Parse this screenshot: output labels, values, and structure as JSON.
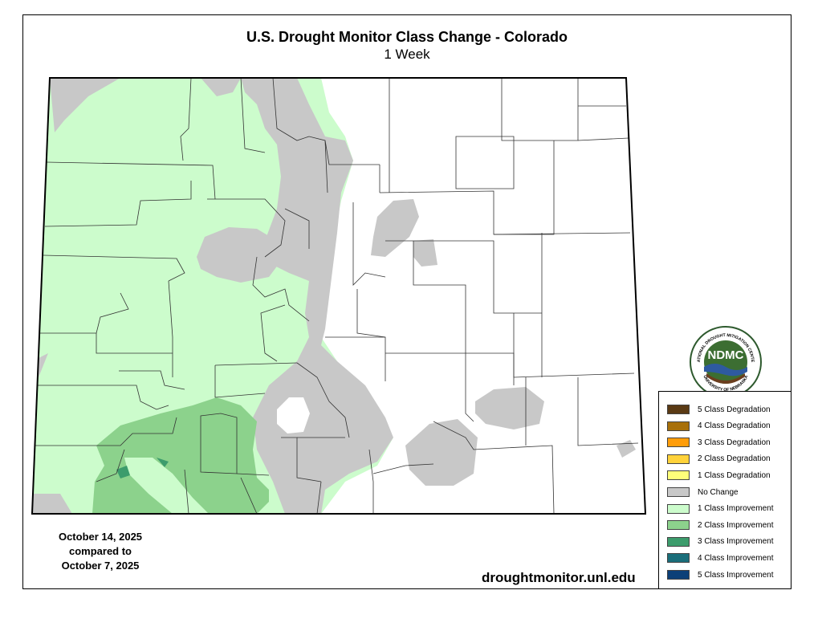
{
  "header": {
    "title": "U.S. Drought Monitor Class Change - Colorado",
    "subtitle": "1 Week"
  },
  "dates": {
    "line1": "October 14, 2025",
    "line2": "compared to",
    "line3": "October 7, 2025"
  },
  "footer": {
    "website": "droughtmonitor.unl.edu"
  },
  "logo": {
    "acronym": "NDMC",
    "ring_top": "NATIONAL DROUGHT MITIGATION CENTER",
    "ring_bottom": "UNIVERSITY OF NEBRASKA"
  },
  "legend": {
    "items": [
      {
        "label": "5 Class Degradation",
        "color": "#5a3a14"
      },
      {
        "label": "4 Class Degradation",
        "color": "#a8700a"
      },
      {
        "label": "3 Class Degradation",
        "color": "#ff9d0a"
      },
      {
        "label": "2 Class Degradation",
        "color": "#ffd23a"
      },
      {
        "label": "1 Class Degradation",
        "color": "#ffff7a"
      },
      {
        "label": "No Change",
        "color": "#c8c8c8"
      },
      {
        "label": "1 Class Improvement",
        "color": "#ccfccc"
      },
      {
        "label": "2 Class Improvement",
        "color": "#8cd28c"
      },
      {
        "label": "3 Class Improvement",
        "color": "#3c9c6c"
      },
      {
        "label": "4 Class Improvement",
        "color": "#1a6e7a"
      },
      {
        "label": "5 Class Improvement",
        "color": "#0c4078"
      }
    ]
  },
  "colors": {
    "no_change": "#c8c8c8",
    "one_class_improvement": "#ccfccc",
    "two_class_improvement": "#8cd28c",
    "three_class_improvement": "#3c9c6c",
    "county_line": "#333333"
  }
}
